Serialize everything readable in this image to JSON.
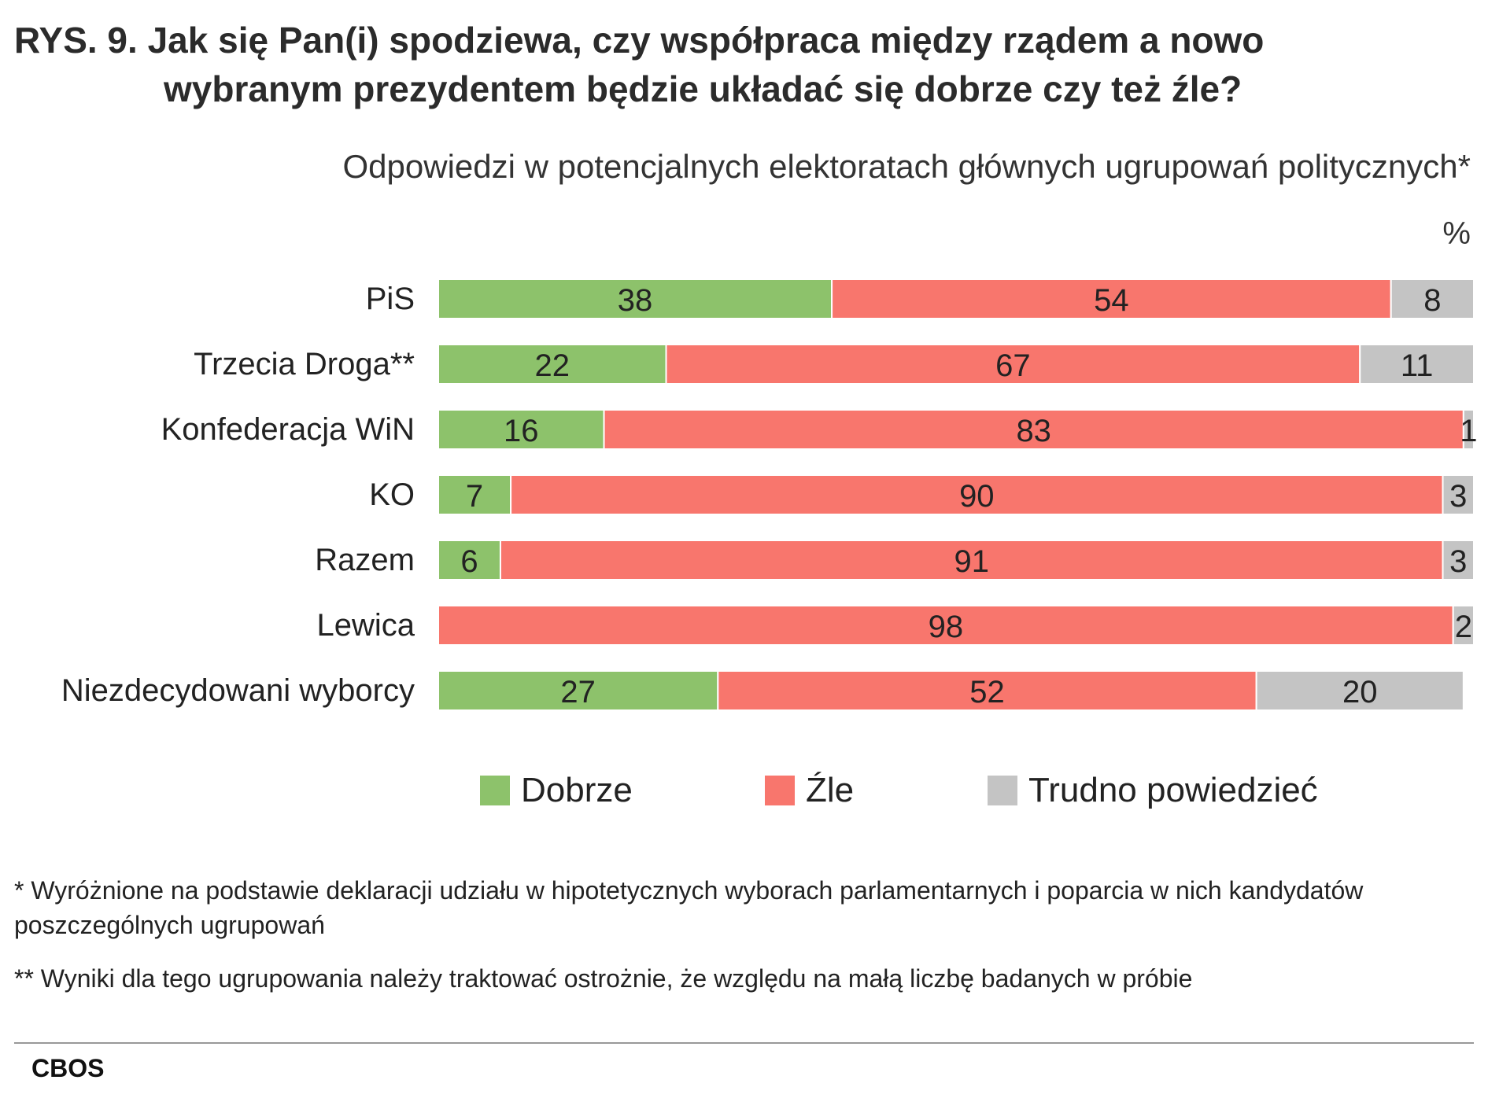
{
  "header": {
    "title_line1": "RYS. 9. Jak się Pan(i) spodziewa, czy współpraca między rządem a nowo",
    "title_line2": "wybranym prezydentem będzie układać się dobrze czy też źle?",
    "subtitle": "Odpowiedzi w potencjalnych elektoratach głównych ugrupowań politycznych*",
    "unit": "%"
  },
  "colors": {
    "dobrze": "#8dc26b",
    "zle": "#f8766d",
    "trudno": "#c4c4c4"
  },
  "chart_data": {
    "type": "bar",
    "orientation": "horizontal",
    "stacked": true,
    "categories": [
      "PiS",
      "Trzecia Droga**",
      "Konfederacja WiN",
      "KO",
      "Razem",
      "Lewica",
      "Niezdecydowani wyborcy"
    ],
    "series": [
      {
        "name": "Dobrze",
        "color": "#8dc26b",
        "values": [
          38,
          22,
          16,
          7,
          6,
          0,
          27
        ]
      },
      {
        "name": "Źle",
        "color": "#f8766d",
        "values": [
          54,
          67,
          83,
          90,
          91,
          98,
          52
        ]
      },
      {
        "name": "Trudno powiedzieć",
        "color": "#c4c4c4",
        "values": [
          8,
          11,
          1,
          3,
          3,
          2,
          20
        ]
      }
    ],
    "xlim": [
      0,
      100
    ],
    "legend_position": "bottom",
    "grid": false
  },
  "legend": {
    "items": [
      "Dobrze",
      "Źle",
      "Trudno powiedzieć"
    ]
  },
  "notes": {
    "note1": "* Wyróżnione na podstawie deklaracji udziału w hipotetycznych wyborach parlamentarnych i poparcia w nich kandydatów poszczególnych ugrupowań",
    "note2": "** Wyniki dla tego ugrupowania należy traktować ostrożnie, że względu na małą liczbę badanych w próbie"
  },
  "source": "CBOS"
}
